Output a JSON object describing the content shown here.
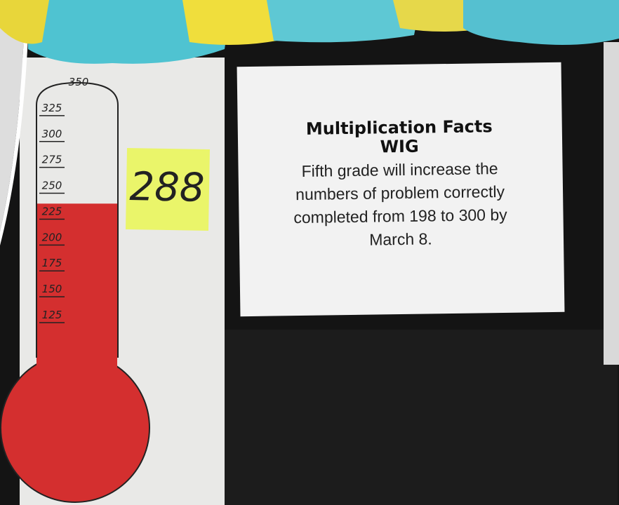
{
  "thermometer": {
    "ticks": [
      350,
      325,
      300,
      275,
      250,
      225,
      200,
      175,
      150,
      125
    ],
    "range": [
      125,
      350
    ],
    "level": 240
  },
  "sticky_note": {
    "text": "288"
  },
  "sign": {
    "title": [
      "Multiplication Facts",
      "WIG"
    ],
    "body": [
      "Fifth grade will increase the",
      "numbers of problem correctly",
      "completed from 198 to 300 by",
      "March 8."
    ]
  }
}
